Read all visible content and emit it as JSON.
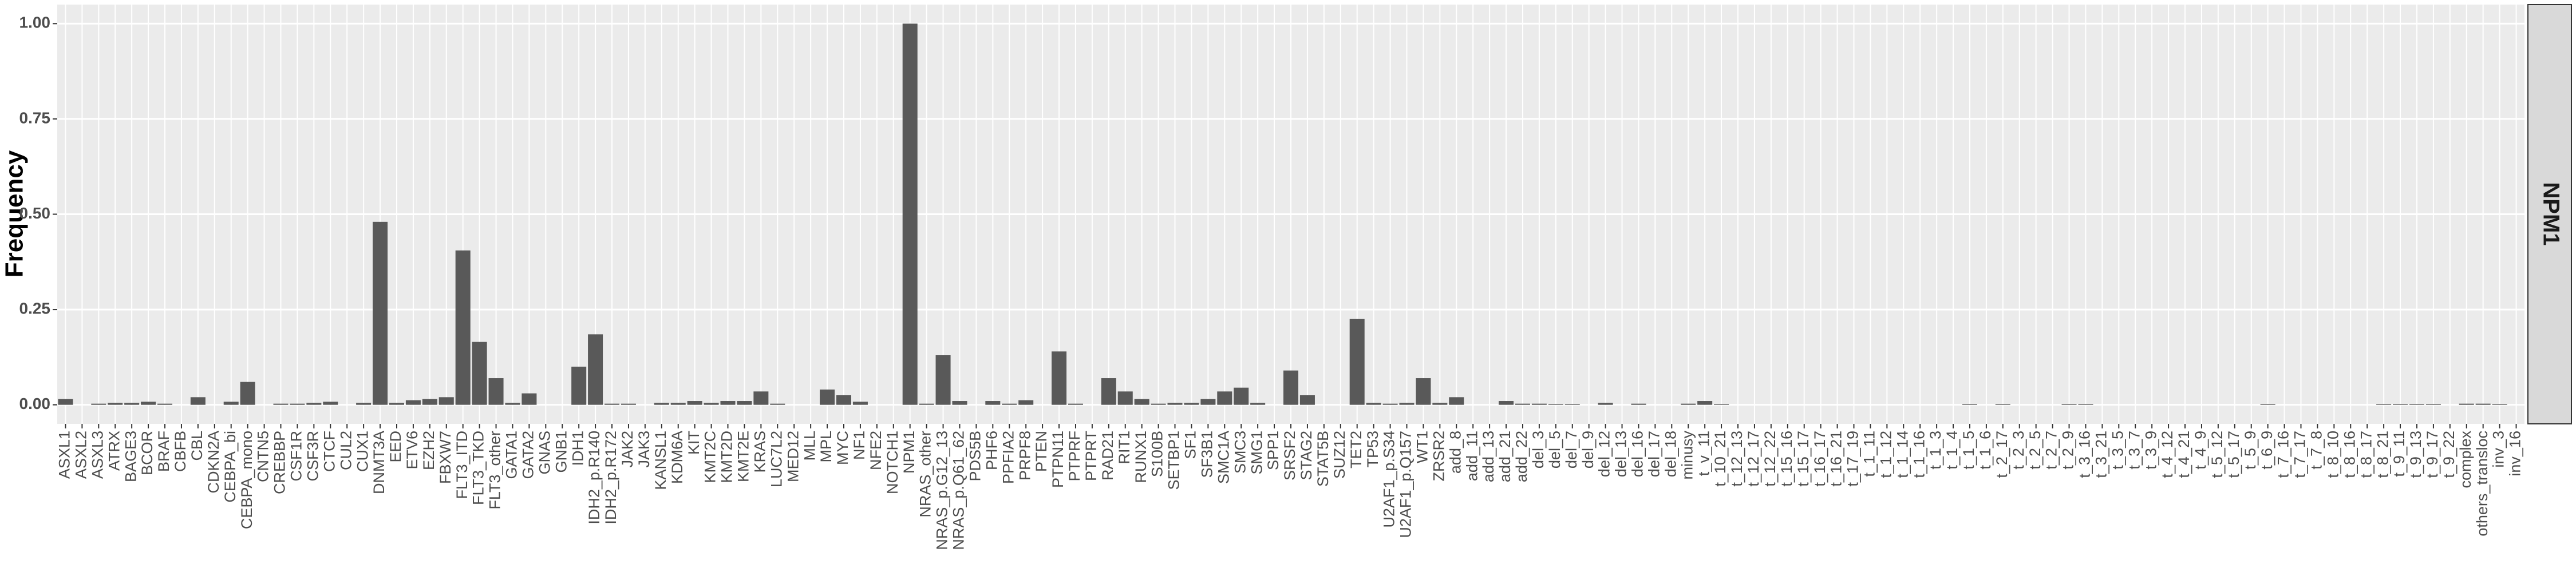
{
  "chart_data": {
    "type": "bar",
    "y_label": "Frequency",
    "facet_label": "NPM1",
    "color": "#595959",
    "grid": true,
    "ylim": [
      -0.05,
      1.05
    ],
    "yticks": [
      {
        "value": 0,
        "label": "0.00"
      },
      {
        "value": 0.25,
        "label": "0.25"
      },
      {
        "value": 0.5,
        "label": "0.50"
      },
      {
        "value": 0.75,
        "label": "0.75"
      },
      {
        "value": 1,
        "label": "1.00"
      }
    ],
    "categories": [
      "ASXL1",
      "ASXL2",
      "ASXL3",
      "ATRX",
      "BAGE3",
      "BCOR",
      "BRAF",
      "CBFB",
      "CBL",
      "CDKN2A",
      "CEBPA_bi",
      "CEBPA_mono",
      "CNTN5",
      "CREBBP",
      "CSF1R",
      "CSF3R",
      "CTCF",
      "CUL2",
      "CUX1",
      "DNMT3A",
      "EED",
      "ETV6",
      "EZH2",
      "FBXW7",
      "FLT3_ITD",
      "FLT3_TKD",
      "FLT3_other",
      "GATA1",
      "GATA2",
      "GNAS",
      "GNB1",
      "IDH1",
      "IDH2_p.R140",
      "IDH2_p.R172",
      "JAK2",
      "JAK3",
      "KANSL1",
      "KDM6A",
      "KIT",
      "KMT2C",
      "KMT2D",
      "KMT2E",
      "KRAS",
      "LUC7L2",
      "MED12",
      "MLL",
      "MPL",
      "MYC",
      "NF1",
      "NFE2",
      "NOTCH1",
      "NPM1",
      "NRAS_other",
      "NRAS_p.G12_13",
      "NRAS_p.Q61_62",
      "PDS5B",
      "PHF6",
      "PPFIA2",
      "PRPF8",
      "PTEN",
      "PTPN11",
      "PTPRF",
      "PTPRT",
      "RAD21",
      "RIT1",
      "RUNX1",
      "S100B",
      "SETBP1",
      "SF1",
      "SF3B1",
      "SMC1A",
      "SMC3",
      "SMG1",
      "SPP1",
      "SRSF2",
      "STAG2",
      "STAT5B",
      "SUZ12",
      "TET2",
      "TP53",
      "U2AF1_p.S34",
      "U2AF1_p.Q157",
      "WT1",
      "ZRSR2",
      "add_8",
      "add_11",
      "add_13",
      "add_21",
      "add_22",
      "del_3",
      "del_5",
      "del_7",
      "del_9",
      "del_12",
      "del_13",
      "del_16",
      "del_17",
      "del_18",
      "minusy",
      "t_v_11",
      "t_10_21",
      "t_12_13",
      "t_12_17",
      "t_12_22",
      "t_15_16",
      "t_15_17",
      "t_16_17",
      "t_16_21",
      "t_17_19",
      "t_1_11",
      "t_1_12",
      "t_1_14",
      "t_1_16",
      "t_1_3",
      "t_1_4",
      "t_1_5",
      "t_1_6",
      "t_2_17",
      "t_2_3",
      "t_2_5",
      "t_2_7",
      "t_2_9",
      "t_3_16",
      "t_3_21",
      "t_3_5",
      "t_3_7",
      "t_3_9",
      "t_4_12",
      "t_4_21",
      "t_4_9",
      "t_5_12",
      "t_5_17",
      "t_5_9",
      "t_6_9",
      "t_7_16",
      "t_7_17",
      "t_7_8",
      "t_8_10",
      "t_8_16",
      "t_8_17",
      "t_8_21",
      "t_9_11",
      "t_9_13",
      "t_9_17",
      "t_9_22",
      "complex",
      "others_transloc",
      "inv_3",
      "inv_16"
    ],
    "values": [
      0.015,
      0,
      0.003,
      0.005,
      0.005,
      0.008,
      0.003,
      0,
      0.02,
      0,
      0.008,
      0.06,
      0,
      0.003,
      0.003,
      0.005,
      0.008,
      0,
      0.005,
      0.48,
      0.005,
      0.012,
      0.015,
      0.02,
      0.405,
      0.165,
      0.07,
      0.005,
      0.03,
      0,
      0,
      0.1,
      0.185,
      0.003,
      0.003,
      0,
      0.005,
      0.005,
      0.01,
      0.005,
      0.01,
      0.01,
      0.035,
      0.003,
      0,
      0,
      0.04,
      0.025,
      0.008,
      0,
      0,
      1,
      0.003,
      0.13,
      0.01,
      0,
      0.01,
      0.003,
      0.012,
      0,
      0.14,
      0.003,
      0,
      0.07,
      0.035,
      0.015,
      0.003,
      0.005,
      0.005,
      0.015,
      0.035,
      0.045,
      0.005,
      0,
      0.09,
      0.025,
      0,
      0,
      0.225,
      0.005,
      0.003,
      0.005,
      0.07,
      0.005,
      0.02,
      0,
      0,
      0.01,
      0.003,
      0.003,
      0.002,
      0.002,
      0,
      0.005,
      0,
      0.003,
      0,
      0,
      0.003,
      0.01,
      0.002,
      0,
      0,
      0,
      0,
      0,
      0,
      0,
      0,
      0,
      0,
      0,
      0,
      0,
      0,
      0.002,
      0,
      0.002,
      0,
      0,
      0,
      0.002,
      0.002,
      0,
      0,
      0,
      0,
      0,
      0,
      0,
      0,
      0,
      0,
      0.002,
      0,
      0,
      0,
      0,
      0,
      0,
      0.002,
      0.002,
      0.002,
      0.002,
      0,
      0.003,
      0.003,
      0.002,
      0
    ]
  }
}
